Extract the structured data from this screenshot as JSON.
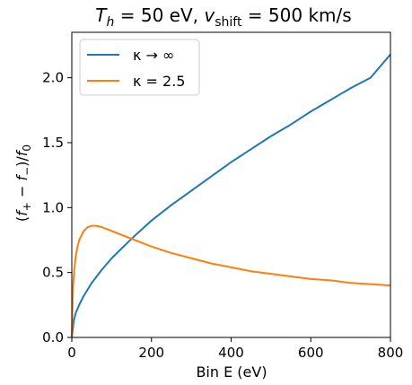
{
  "chart_data": {
    "type": "line",
    "title": {
      "t_symbol": "T",
      "t_sub": "h",
      "t_rest": " = 50 eV, ",
      "v_symbol": "v",
      "v_sub": "shift",
      "v_rest": " = 500 km/s"
    },
    "xlabel": "Bin E (eV)",
    "ylabel": {
      "open": "(",
      "f1": "f",
      "f1_sub": "+",
      "minus": " − ",
      "f2": "f",
      "f2_sub": "−",
      "close": ")/",
      "f0": "f",
      "f0_sub": "0"
    },
    "xlim": [
      0,
      800
    ],
    "ylim": [
      0,
      2.35
    ],
    "xticks": [
      0,
      200,
      400,
      600,
      800
    ],
    "xtick_labels": [
      "0",
      "200",
      "400",
      "600",
      "800"
    ],
    "yticks": [
      0.0,
      0.5,
      1.0,
      1.5,
      2.0
    ],
    "ytick_labels": [
      "0.0",
      "0.5",
      "1.0",
      "1.5",
      "2.0"
    ],
    "grid": false,
    "legend_position": "top-left",
    "series": [
      {
        "name": "κ → ∞",
        "color": "#1f77b4",
        "x": [
          0,
          5,
          10,
          20,
          30,
          50,
          75,
          100,
          150,
          200,
          250,
          300,
          350,
          400,
          450,
          500,
          550,
          600,
          650,
          700,
          750,
          800
        ],
        "y": [
          0.0,
          0.13,
          0.19,
          0.26,
          0.32,
          0.42,
          0.52,
          0.61,
          0.76,
          0.9,
          1.02,
          1.13,
          1.24,
          1.35,
          1.45,
          1.55,
          1.64,
          1.74,
          1.83,
          1.92,
          2.0,
          2.18
        ]
      },
      {
        "name": "κ = 2.5",
        "color": "#ff7f0e",
        "x": [
          0,
          3,
          6,
          10,
          15,
          20,
          30,
          40,
          50,
          60,
          75,
          100,
          150,
          200,
          250,
          300,
          350,
          400,
          450,
          500,
          550,
          600,
          650,
          700,
          750,
          800
        ],
        "y": [
          0.0,
          0.38,
          0.52,
          0.63,
          0.71,
          0.76,
          0.82,
          0.85,
          0.86,
          0.86,
          0.85,
          0.82,
          0.76,
          0.7,
          0.65,
          0.61,
          0.57,
          0.54,
          0.51,
          0.49,
          0.47,
          0.45,
          0.44,
          0.42,
          0.41,
          0.4
        ]
      }
    ]
  }
}
